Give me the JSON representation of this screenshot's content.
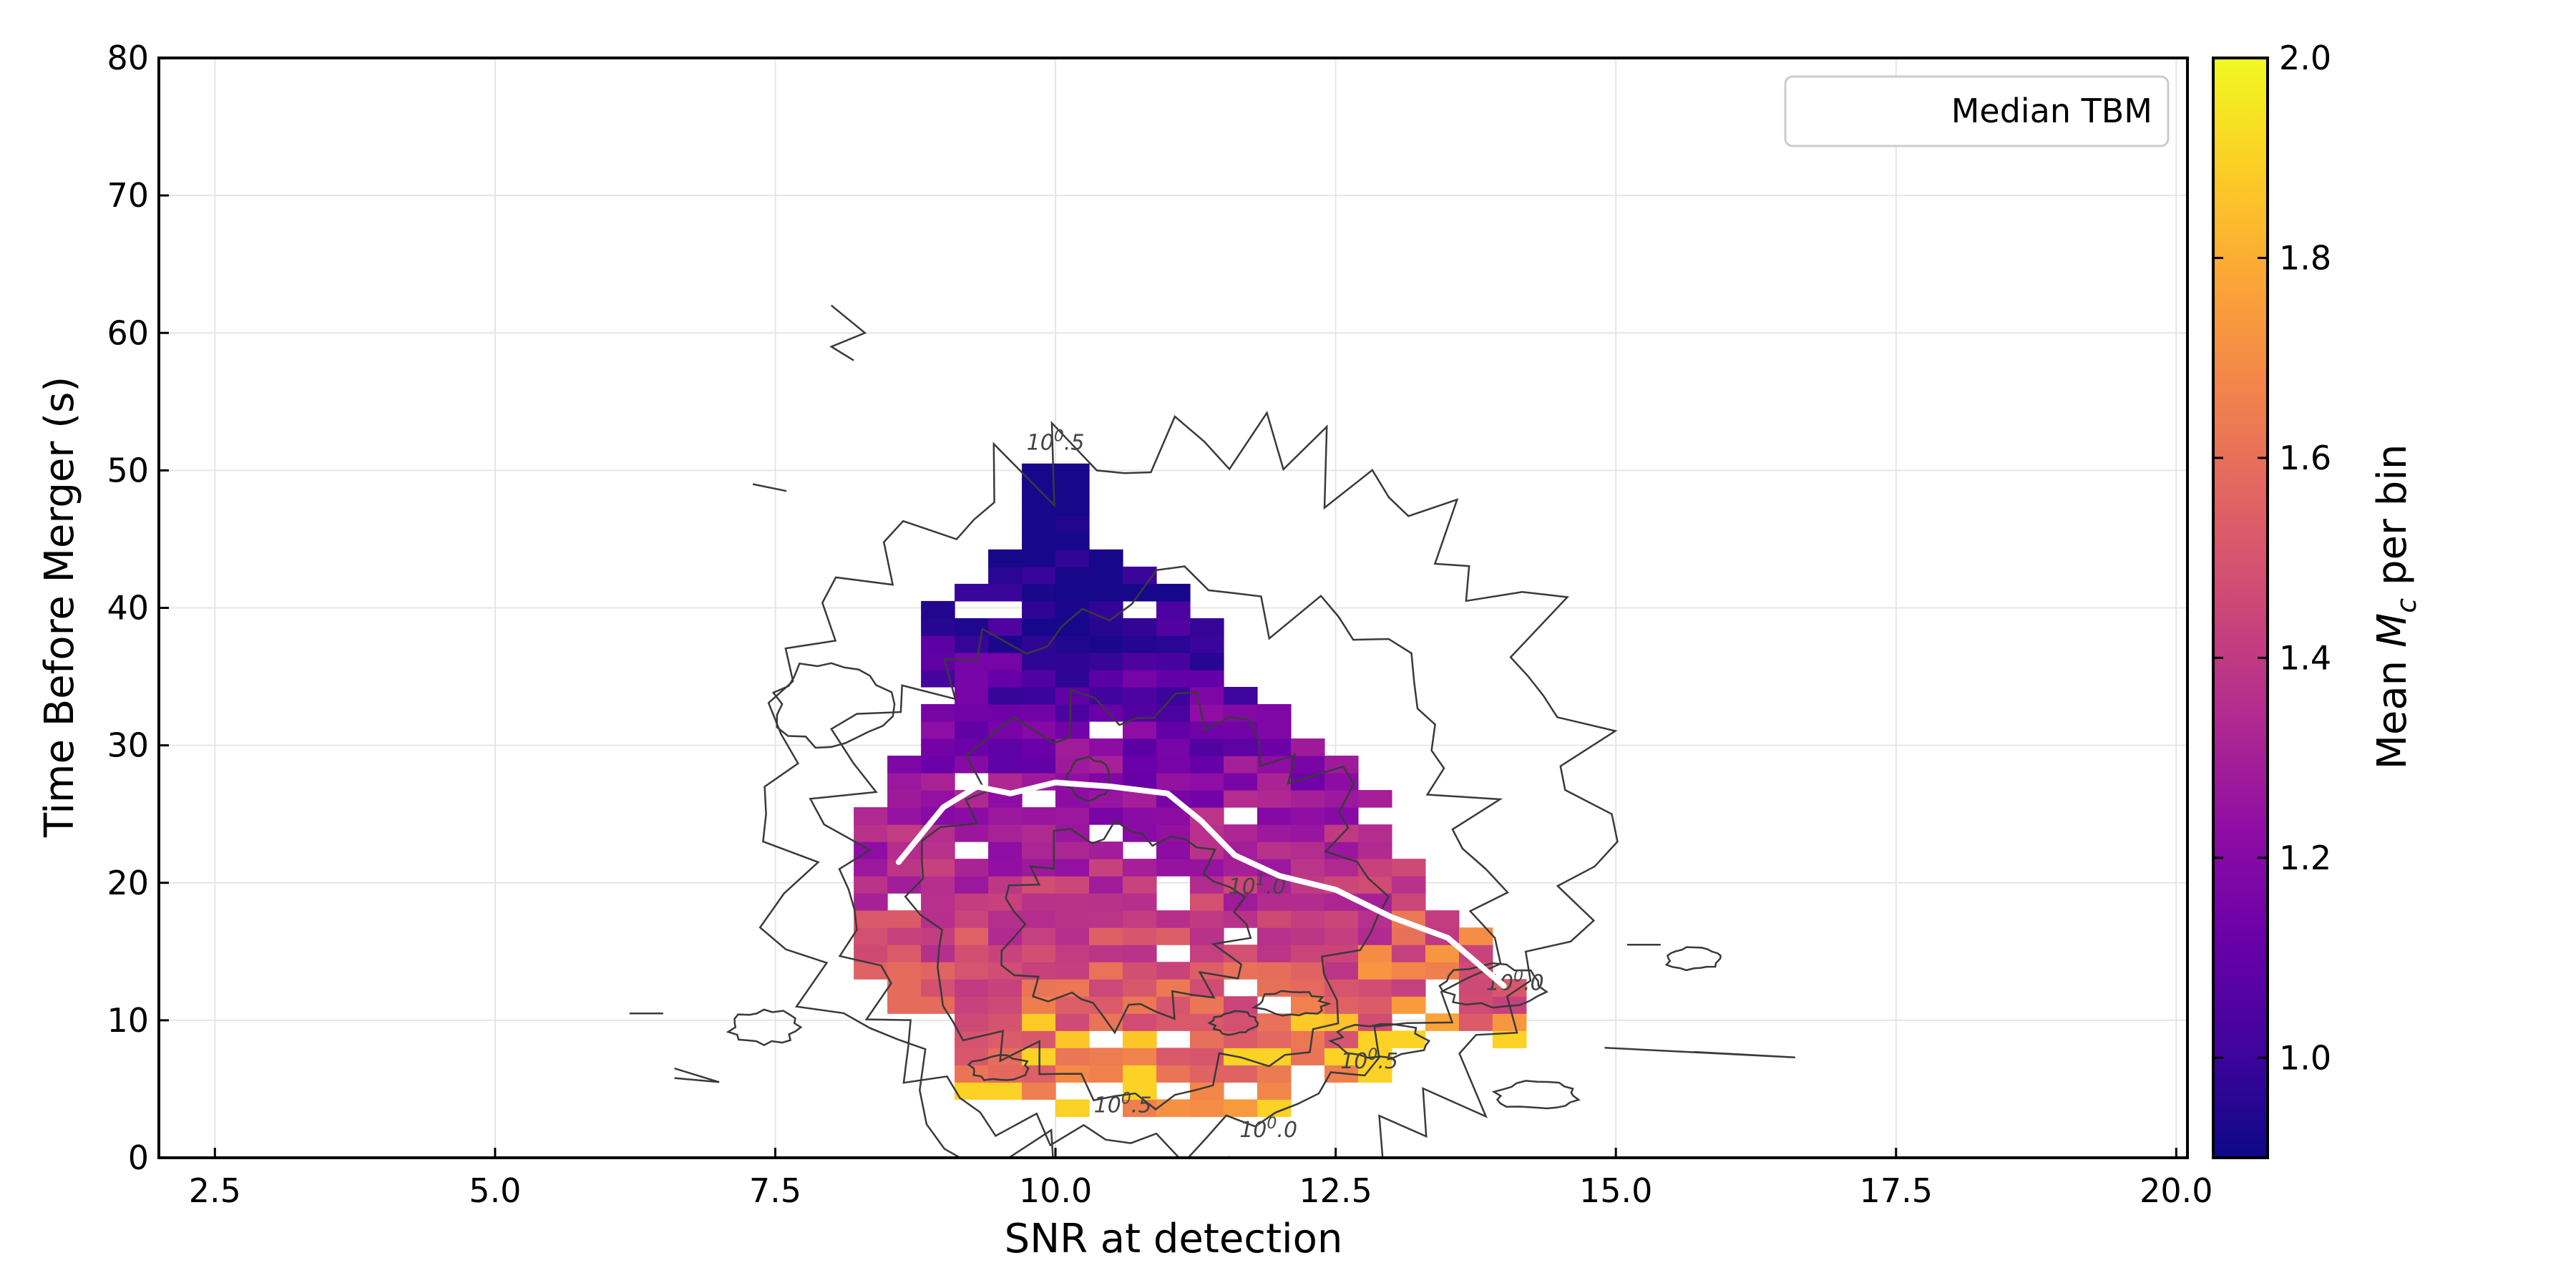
{
  "chart_data": {
    "type": "heatmap",
    "title": "",
    "xlabel": "SNR at detection",
    "ylabel": "Time Before Merger (s)",
    "xlim": [
      2.0,
      20.1
    ],
    "ylim": [
      0,
      80
    ],
    "x_ticks": [
      2.5,
      5.0,
      7.5,
      10.0,
      12.5,
      15.0,
      17.5,
      20.0
    ],
    "x_tick_labels": [
      "2.5",
      "5.0",
      "7.5",
      "10.0",
      "12.5",
      "15.0",
      "17.5",
      "20.0"
    ],
    "y_ticks": [
      0,
      10,
      20,
      30,
      40,
      50,
      60,
      70,
      80
    ],
    "y_tick_labels": [
      "0",
      "10",
      "20",
      "30",
      "40",
      "50",
      "60",
      "70",
      "80"
    ],
    "grid": true,
    "legend": {
      "entries": [
        "Median TBM"
      ],
      "location": "top-right"
    },
    "colorbar": {
      "label_prefix": "Mean ",
      "label_symbol": "M",
      "label_subscript": "c",
      "label_suffix": " per bin",
      "vmin": 0.9,
      "vmax": 2.0,
      "ticks": [
        1.0,
        1.2,
        1.4,
        1.6,
        1.8,
        2.0
      ],
      "tick_labels": [
        "1.0",
        "1.2",
        "1.4",
        "1.6",
        "1.8",
        "2.0"
      ],
      "colormap": "plasma"
    },
    "heatmap_bins": {
      "snr_bin_width": 0.3,
      "tbm_bin_width": 1.25,
      "snr_range": [
        8.2,
        14.0
      ],
      "tbm_range": [
        3,
        52
      ]
    },
    "median_tbm_line": {
      "x": [
        8.6,
        9.0,
        9.3,
        9.6,
        10.0,
        10.5,
        11.0,
        11.3,
        11.6,
        12.0,
        12.5,
        13.0,
        13.5,
        14.0
      ],
      "y": [
        21.5,
        25.5,
        27.0,
        26.5,
        27.3,
        27.0,
        26.5,
        24.5,
        22.0,
        20.5,
        19.5,
        17.5,
        16.0,
        12.5
      ]
    },
    "contour_levels": [
      {
        "label_base": "10",
        "label_exponent": "0",
        "label_decimals": ".0",
        "x": 11.9,
        "y": 1.5
      },
      {
        "label_base": "10",
        "label_exponent": "0",
        "label_decimals": ".0",
        "x": 14.1,
        "y": 12.2
      },
      {
        "label_base": "10",
        "label_exponent": "0",
        "label_decimals": ".5",
        "x": 10.6,
        "y": 3.3
      },
      {
        "label_base": "10",
        "label_exponent": "0",
        "label_decimals": ".5",
        "x": 12.8,
        "y": 6.5
      },
      {
        "label_base": "10",
        "label_exponent": "0",
        "label_decimals": ".5",
        "x": 10.0,
        "y": 51.5
      },
      {
        "label_base": "10",
        "label_exponent": "1",
        "label_decimals": ".0",
        "x": 11.8,
        "y": 19.2
      }
    ]
  }
}
